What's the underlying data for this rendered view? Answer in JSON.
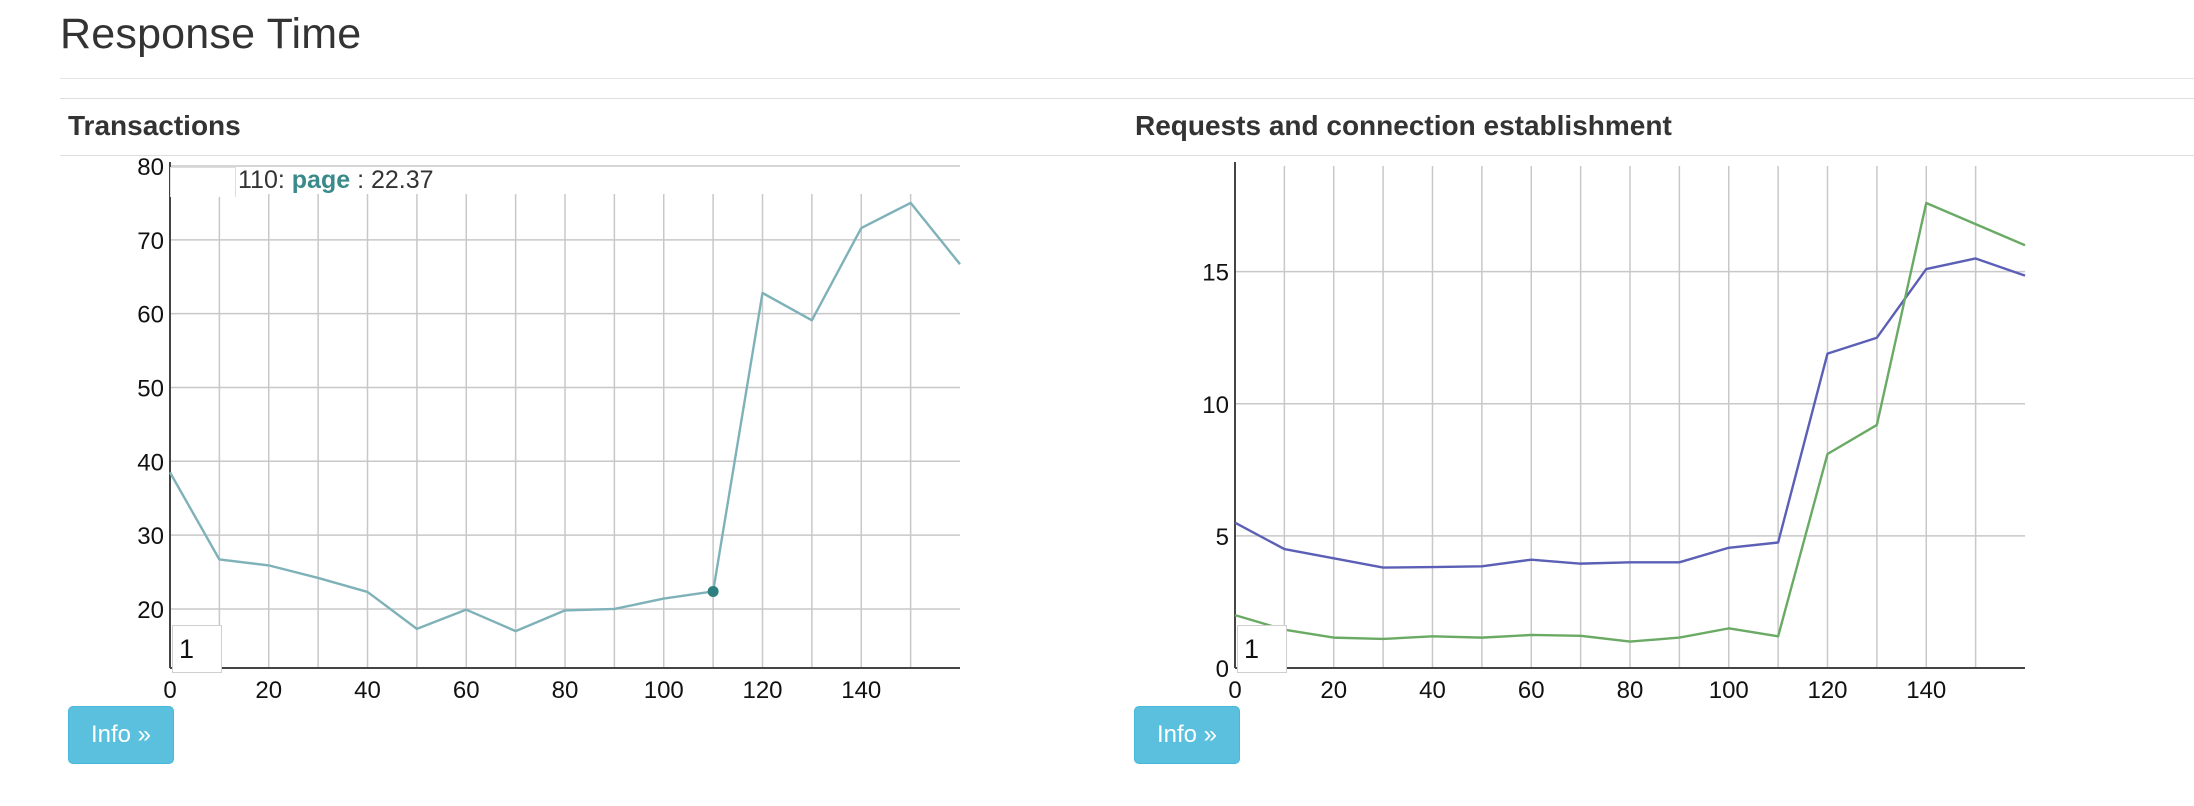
{
  "page": {
    "title": "Response Time"
  },
  "panels": [
    {
      "title": "Transactions",
      "info_label": "Info »",
      "smoothing_value": "1",
      "hover": {
        "x_label": "110:",
        "series": "page",
        "value": ": 22.37"
      }
    },
    {
      "title": "Requests and connection establishment",
      "info_label": "Info »",
      "smoothing_value": "1"
    }
  ],
  "chart_data": [
    {
      "type": "line",
      "title": "Transactions",
      "x": [
        0,
        10,
        20,
        30,
        40,
        50,
        60,
        70,
        80,
        90,
        100,
        110,
        120,
        130,
        140,
        150,
        160
      ],
      "series": [
        {
          "name": "page",
          "color": "#7fb2b8",
          "values": [
            38.5,
            26.7,
            25.9,
            24.2,
            22.3,
            17.3,
            19.9,
            17.0,
            19.8,
            20.0,
            21.4,
            22.37,
            62.8,
            59.1,
            71.6,
            75.0,
            66.7
          ]
        }
      ],
      "xlim": [
        0,
        160
      ],
      "ylim": [
        12,
        80
      ],
      "x_ticks": [
        0,
        20,
        40,
        60,
        80,
        100,
        120,
        140
      ],
      "y_ticks": [
        20,
        30,
        40,
        50,
        60,
        70,
        80
      ],
      "grid": true,
      "highlight": {
        "x": 110,
        "y": 22.37,
        "color": "#2e8080"
      }
    },
    {
      "type": "line",
      "title": "Requests and connection establishment",
      "x": [
        0,
        10,
        20,
        30,
        40,
        50,
        60,
        70,
        80,
        90,
        100,
        110,
        120,
        130,
        140,
        150,
        160
      ],
      "series": [
        {
          "color": "#5b5fb5",
          "values": [
            5.5,
            4.5,
            4.15,
            3.8,
            3.82,
            3.85,
            4.1,
            3.95,
            4.0,
            4.0,
            4.55,
            4.75,
            11.9,
            12.5,
            15.1,
            15.5,
            14.85
          ]
        },
        {
          "color": "#6aaa64",
          "values": [
            2.0,
            1.45,
            1.15,
            1.1,
            1.2,
            1.15,
            1.25,
            1.22,
            1.0,
            1.15,
            1.5,
            1.2,
            8.1,
            9.2,
            17.6,
            16.8,
            16.0
          ]
        }
      ],
      "xlim": [
        0,
        160
      ],
      "ylim": [
        0,
        19
      ],
      "x_ticks": [
        0,
        20,
        40,
        60,
        80,
        100,
        120,
        140
      ],
      "y_ticks": [
        0,
        5,
        10,
        15
      ],
      "grid": true
    }
  ]
}
